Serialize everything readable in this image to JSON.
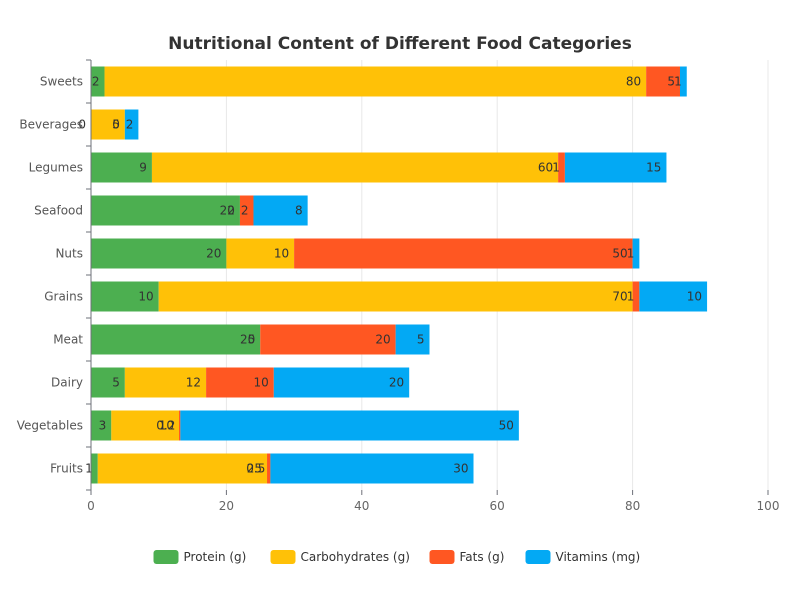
{
  "chart_data": {
    "type": "bar",
    "orientation": "horizontal",
    "stacked": true,
    "title": "Nutritional Content of Different Food Categories",
    "categories": [
      "Fruits",
      "Vegetables",
      "Dairy",
      "Meat",
      "Grains",
      "Nuts",
      "Seafood",
      "Legumes",
      "Beverages",
      "Sweets"
    ],
    "series": [
      {
        "name": "Protein (g)",
        "color": "#4caf50",
        "values": [
          1,
          3,
          5,
          25,
          10,
          20,
          22,
          9,
          0,
          2
        ]
      },
      {
        "name": "Carbohydrates (g)",
        "color": "#ffc107",
        "values": [
          25,
          10,
          12,
          0,
          70,
          10,
          0,
          60,
          5,
          80
        ]
      },
      {
        "name": "Fats (g)",
        "color": "#ff5722",
        "values": [
          0.5,
          0.2,
          10,
          20,
          1,
          50,
          2,
          1,
          0,
          5
        ]
      },
      {
        "name": "Vitamins (mg)",
        "color": "#03a9f4",
        "values": [
          30,
          50,
          20,
          5,
          10,
          1,
          8,
          15,
          2,
          1
        ]
      }
    ],
    "data_labels": [
      [
        "1",
        "3",
        "5",
        "25",
        "10",
        "20",
        "22",
        "9",
        "0",
        "2"
      ],
      [
        "25",
        "10",
        "12",
        "0",
        "70",
        "10",
        "0",
        "60",
        "5",
        "80"
      ],
      [
        "0.5",
        "0.2",
        "10",
        "20",
        "1",
        "50",
        "2",
        "1",
        "0",
        "5"
      ],
      [
        "30",
        "50",
        "20",
        "5",
        "10",
        "1",
        "8",
        "15",
        "2",
        "1"
      ]
    ],
    "xlim": [
      0,
      100
    ],
    "x_ticks": [
      "0",
      "20",
      "40",
      "60",
      "80",
      "100"
    ],
    "grid": true,
    "legend_position": "bottom"
  }
}
